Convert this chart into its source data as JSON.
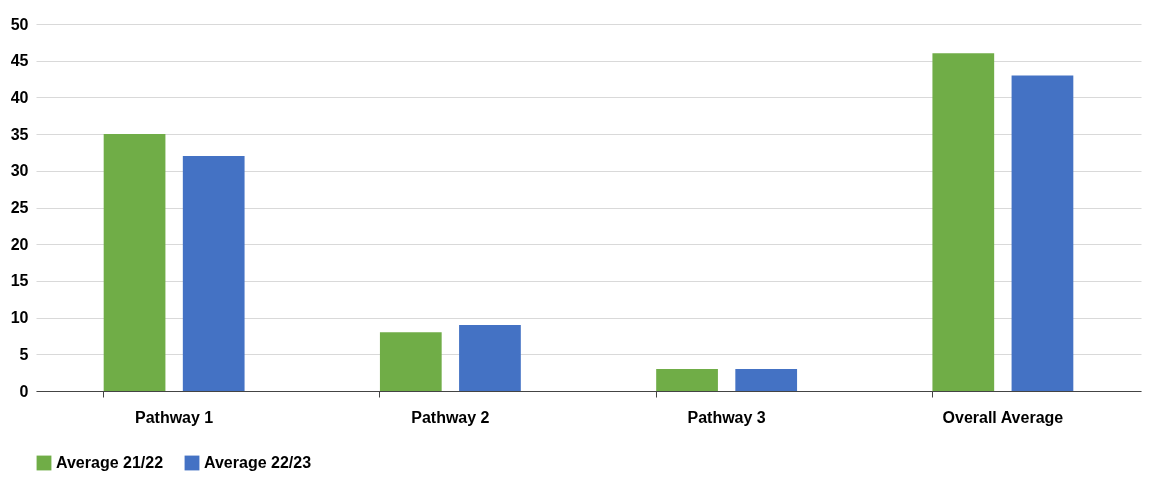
{
  "chart_data": {
    "type": "bar",
    "categories": [
      "Pathway 1",
      "Pathway 2",
      "Pathway 3",
      "Overall Average"
    ],
    "series": [
      {
        "name": "Average 21/22",
        "color": "#70ad47",
        "values": [
          35,
          8,
          3,
          46
        ]
      },
      {
        "name": "Average 22/23",
        "color": "#4472c4",
        "values": [
          32,
          9,
          3,
          43
        ]
      }
    ],
    "ylim": [
      0,
      50
    ],
    "yticks": [
      0,
      5,
      10,
      15,
      20,
      25,
      30,
      35,
      40,
      45,
      50
    ],
    "grid": "y",
    "legend": "bottom"
  }
}
